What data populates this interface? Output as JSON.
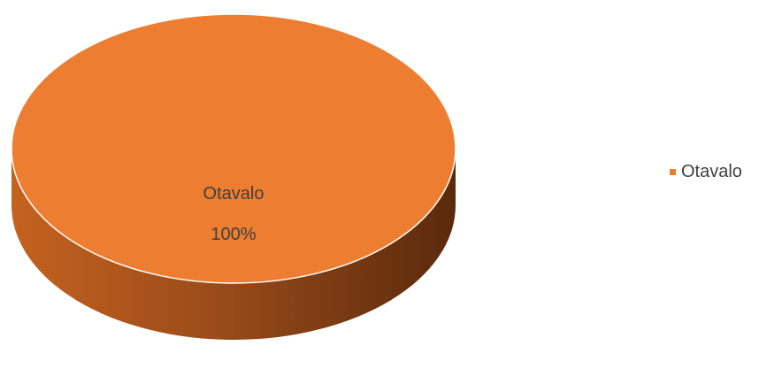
{
  "chart_data": {
    "type": "pie",
    "style": "3d",
    "categories": [
      "Otavalo"
    ],
    "values": [
      100
    ],
    "data_labels": [
      {
        "category": "Otavalo",
        "percent": "100%"
      }
    ],
    "legend": {
      "position": "right",
      "entries": [
        {
          "label": "Otavalo",
          "color": "#ed7d31"
        }
      ]
    },
    "colors": {
      "slice_top": "#ed7d31",
      "slice_side_light": "#c4621f",
      "slice_side_dark": "#5a2a0c",
      "label_text": "#404040"
    }
  }
}
